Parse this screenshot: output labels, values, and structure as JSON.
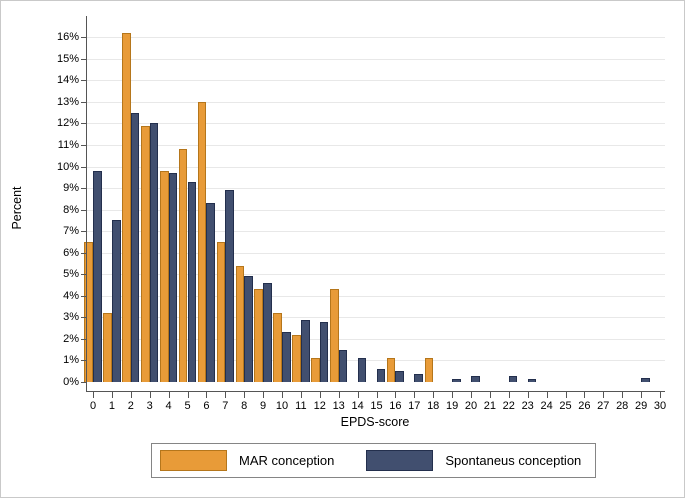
{
  "chart_data": {
    "type": "bar",
    "title": "",
    "xlabel": "EPDS-score",
    "ylabel": "Percent",
    "ylim": [
      0,
      16
    ],
    "ytick_step": 1,
    "ytick_format": "percent",
    "xticks": [
      0,
      1,
      2,
      3,
      4,
      5,
      6,
      7,
      8,
      9,
      10,
      11,
      12,
      13,
      14,
      15,
      16,
      17,
      18,
      19,
      20,
      21,
      22,
      23,
      24,
      25,
      26,
      27,
      28,
      29,
      30
    ],
    "grid": true,
    "legend_position": "bottom",
    "categories": [
      0,
      1,
      2,
      3,
      4,
      5,
      6,
      7,
      8,
      9,
      10,
      11,
      12,
      13,
      14,
      15,
      16,
      17,
      18,
      19,
      20,
      21,
      22,
      23,
      24,
      25,
      26,
      27,
      28,
      29,
      30
    ],
    "series": [
      {
        "name": "MAR conception",
        "color": "#E89B38",
        "border_color": "#b5761b",
        "values": [
          6.5,
          3.2,
          16.2,
          11.9,
          9.8,
          10.8,
          13.0,
          6.5,
          5.4,
          4.3,
          3.2,
          2.2,
          1.1,
          4.3,
          0,
          0,
          1.1,
          0,
          1.1,
          0,
          0,
          0,
          0,
          0,
          0,
          0,
          0,
          0,
          0,
          0,
          0
        ]
      },
      {
        "name": "Spontaneus conception",
        "color": "#414F6F",
        "border_color": "#232f4d",
        "values": [
          9.8,
          7.5,
          12.5,
          12.0,
          9.7,
          9.3,
          8.3,
          8.9,
          4.9,
          4.6,
          2.3,
          2.9,
          2.8,
          1.5,
          1.1,
          0.6,
          0.5,
          0.35,
          0,
          0.15,
          0.3,
          0,
          0.3,
          0.15,
          0,
          0,
          0,
          0,
          0,
          0.2,
          0
        ]
      }
    ]
  }
}
